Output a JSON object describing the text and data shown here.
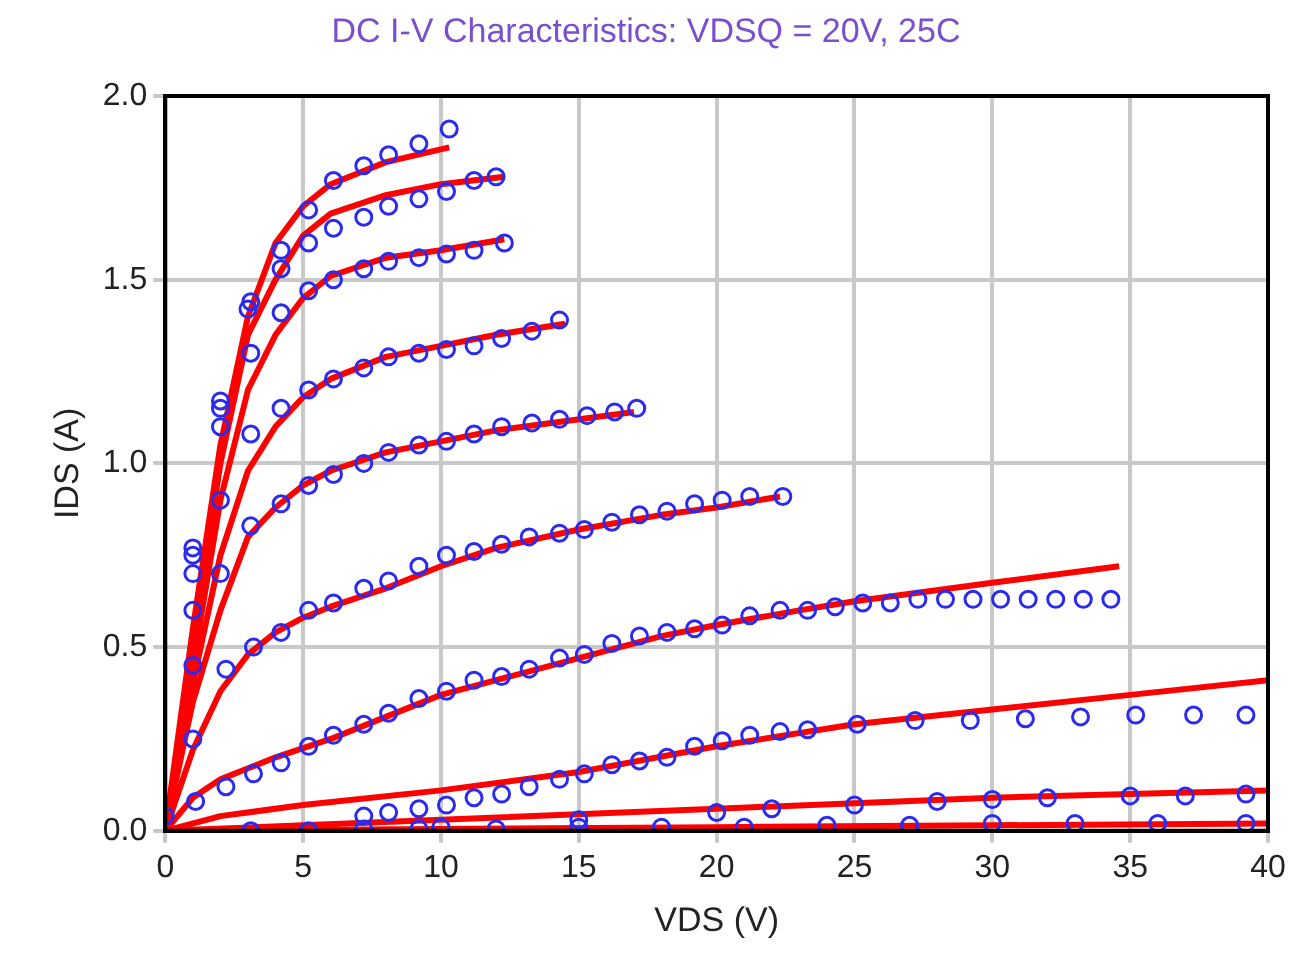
{
  "chart_data": {
    "type": "line",
    "title": "DC I-V Characteristics:  VDSQ = 20V, 25C",
    "xlabel": "VDS (V)",
    "ylabel": "IDS (A)",
    "xlim": [
      0,
      40
    ],
    "xticks": [
      0,
      5,
      10,
      15,
      20,
      25,
      30,
      35,
      40
    ],
    "ylim": [
      0,
      2
    ],
    "yticks": [
      {
        "value": 0,
        "label": "0.0"
      },
      {
        "value": 0.5,
        "label": "0.5"
      },
      {
        "value": 1,
        "label": "1.0"
      },
      {
        "value": 1.5,
        "label": "1.5"
      },
      {
        "value": 2,
        "label": "2.0"
      }
    ],
    "grid": true,
    "legend": false,
    "series": [
      {
        "color": "#ff0000",
        "x": [
          0,
          1,
          2,
          3,
          4,
          5,
          6,
          8,
          10.3
        ],
        "values": [
          0,
          0.55,
          1.05,
          1.4,
          1.6,
          1.7,
          1.76,
          1.82,
          1.86
        ]
      },
      {
        "color": "#ff0000",
        "x": [
          0,
          1,
          2,
          3,
          4,
          5,
          6,
          8,
          10,
          12.3
        ],
        "values": [
          0,
          0.5,
          1.0,
          1.35,
          1.5,
          1.62,
          1.68,
          1.73,
          1.76,
          1.78
        ]
      },
      {
        "color": "#ff0000",
        "x": [
          0,
          1,
          2,
          3,
          4,
          5,
          6,
          8,
          10,
          12.3
        ],
        "values": [
          0,
          0.45,
          0.9,
          1.2,
          1.35,
          1.45,
          1.51,
          1.56,
          1.58,
          1.61
        ]
      },
      {
        "color": "#ff0000",
        "x": [
          0,
          1,
          2,
          3,
          4,
          5,
          6,
          8,
          10,
          12,
          14.5
        ],
        "values": [
          0,
          0.4,
          0.75,
          0.98,
          1.1,
          1.18,
          1.23,
          1.29,
          1.32,
          1.35,
          1.38
        ]
      },
      {
        "color": "#ff0000",
        "x": [
          0,
          1,
          2,
          3,
          4,
          5,
          6,
          8,
          10,
          12,
          14,
          17
        ],
        "values": [
          0,
          0.35,
          0.6,
          0.8,
          0.88,
          0.94,
          0.98,
          1.03,
          1.06,
          1.09,
          1.11,
          1.14
        ]
      },
      {
        "color": "#ff0000",
        "x": [
          0,
          1,
          2,
          3,
          4,
          5,
          6,
          8,
          10,
          12,
          15,
          18,
          20,
          22.3
        ],
        "values": [
          0,
          0.22,
          0.38,
          0.48,
          0.54,
          0.58,
          0.61,
          0.66,
          0.72,
          0.77,
          0.82,
          0.86,
          0.88,
          0.91
        ]
      },
      {
        "color": "#ff0000",
        "x": [
          0,
          1,
          2,
          4,
          6,
          8,
          10,
          12,
          15,
          18,
          20,
          23,
          25,
          30,
          34.6
        ],
        "values": [
          0,
          0.09,
          0.14,
          0.2,
          0.25,
          0.31,
          0.37,
          0.41,
          0.47,
          0.53,
          0.56,
          0.6,
          0.625,
          0.675,
          0.72
        ]
      },
      {
        "color": "#ff0000",
        "x": [
          0,
          2,
          5,
          10,
          15,
          20,
          25,
          30,
          35,
          40
        ],
        "values": [
          0,
          0.04,
          0.07,
          0.11,
          0.16,
          0.23,
          0.29,
          0.33,
          0.37,
          0.41
        ]
      },
      {
        "color": "#ff0000",
        "x": [
          0,
          5,
          10,
          20,
          25,
          30,
          35,
          40
        ],
        "values": [
          0,
          0.015,
          0.03,
          0.06,
          0.075,
          0.09,
          0.1,
          0.11
        ]
      },
      {
        "color": "#ff0000",
        "x": [
          0,
          10,
          20,
          30,
          40
        ],
        "values": [
          0,
          0.005,
          0.01,
          0.015,
          0.02
        ]
      },
      {
        "type": "scatter",
        "color": "#2b2bf0",
        "x": [
          1.0,
          2.0,
          3.1,
          4.2,
          5.2,
          6.1,
          7.2,
          8.1,
          9.2,
          10.3
        ],
        "values": [
          0.77,
          1.17,
          1.44,
          1.58,
          1.69,
          1.77,
          1.81,
          1.84,
          1.87,
          1.91
        ]
      },
      {
        "type": "scatter",
        "color": "#2b2bf0",
        "x": [
          1,
          2,
          3,
          4.2,
          5.2,
          6.1,
          7.2,
          8.1,
          9.2,
          10.2,
          11.2,
          12
        ],
        "values": [
          0.75,
          1.15,
          1.42,
          1.53,
          1.6,
          1.64,
          1.67,
          1.7,
          1.72,
          1.74,
          1.77,
          1.78
        ]
      },
      {
        "type": "scatter",
        "color": "#2b2bf0",
        "x": [
          1,
          2,
          3.1,
          4.2,
          5.2,
          6.1,
          7.2,
          8.1,
          9.2,
          10.2,
          11.2,
          12.3
        ],
        "values": [
          0.7,
          1.1,
          1.3,
          1.41,
          1.47,
          1.5,
          1.53,
          1.55,
          1.56,
          1.57,
          1.58,
          1.6
        ]
      },
      {
        "type": "scatter",
        "color": "#2b2bf0",
        "x": [
          1,
          2,
          3.1,
          4.2,
          5.2,
          6.1,
          7.2,
          8.1,
          9.2,
          10.2,
          11.2,
          12.2,
          13.3,
          14.3
        ],
        "values": [
          0.6,
          0.9,
          1.08,
          1.15,
          1.2,
          1.23,
          1.26,
          1.29,
          1.3,
          1.31,
          1.32,
          1.34,
          1.36,
          1.39
        ]
      },
      {
        "type": "scatter",
        "color": "#2b2bf0",
        "x": [
          1,
          2,
          3.1,
          4.2,
          5.2,
          6.1,
          7.2,
          8.1,
          9.2,
          10.2,
          11.2,
          12.2,
          13.3,
          14.3,
          15.3,
          16.3,
          17.1
        ],
        "values": [
          0.45,
          0.7,
          0.83,
          0.89,
          0.94,
          0.97,
          1.0,
          1.03,
          1.05,
          1.06,
          1.08,
          1.1,
          1.11,
          1.12,
          1.13,
          1.14,
          1.15
        ]
      },
      {
        "type": "scatter",
        "color": "#2b2bf0",
        "x": [
          1,
          2.2,
          3.2,
          4.2,
          5.2,
          6.1,
          7.2,
          8.1,
          9.2,
          10.2,
          11.2,
          12.2,
          13.2,
          14.3,
          15.2,
          16.2,
          17.2,
          18.2,
          19.2,
          20.2,
          21.2,
          22.4
        ],
        "values": [
          0.25,
          0.44,
          0.5,
          0.54,
          0.6,
          0.62,
          0.66,
          0.68,
          0.72,
          0.75,
          0.76,
          0.78,
          0.8,
          0.81,
          0.82,
          0.84,
          0.86,
          0.87,
          0.89,
          0.9,
          0.91,
          0.91
        ]
      },
      {
        "type": "scatter",
        "color": "#2b2bf0",
        "x": [
          0,
          1.1,
          2.2,
          3.2,
          4.2,
          5.2,
          6.1,
          7.2,
          8.1,
          9.2,
          10.2,
          11.2,
          12.2,
          13.2,
          14.3,
          15.2,
          16.2,
          17.2,
          18.2,
          19.2,
          20.2,
          21.2,
          22.3,
          23.3,
          24.3,
          25.3,
          26.3,
          27.3,
          28.3,
          29.3,
          30.3,
          31.3,
          32.3,
          33.3,
          34.3
        ],
        "values": [
          0.04,
          0.08,
          0.12,
          0.155,
          0.185,
          0.23,
          0.26,
          0.29,
          0.32,
          0.36,
          0.38,
          0.41,
          0.42,
          0.44,
          0.47,
          0.48,
          0.51,
          0.53,
          0.54,
          0.55,
          0.56,
          0.585,
          0.6,
          0.6,
          0.61,
          0.62,
          0.62,
          0.63,
          0.63,
          0.63,
          0.63,
          0.63,
          0.63,
          0.63,
          0.63
        ]
      },
      {
        "type": "scatter",
        "color": "#2b2bf0",
        "x": [
          7.2,
          8.1,
          9.2,
          10.2,
          11.2,
          12.2,
          13.2,
          14.3,
          15.2,
          16.2,
          17.2,
          18.2,
          19.2,
          20.2,
          21.2,
          22.3,
          23.3,
          25.1,
          27.2,
          29.2,
          31.2,
          33.2,
          35.2,
          37.3,
          39.2
        ],
        "values": [
          0.04,
          0.05,
          0.06,
          0.07,
          0.09,
          0.1,
          0.12,
          0.14,
          0.155,
          0.18,
          0.19,
          0.2,
          0.23,
          0.245,
          0.26,
          0.27,
          0.275,
          0.29,
          0.3,
          0.3,
          0.305,
          0.31,
          0.315,
          0.315,
          0.315
        ]
      },
      {
        "type": "scatter",
        "color": "#2b2bf0",
        "x": [
          10,
          15,
          20,
          22,
          25,
          28,
          30,
          32,
          35,
          37,
          39.2
        ],
        "values": [
          0.01,
          0.03,
          0.05,
          0.06,
          0.07,
          0.08,
          0.085,
          0.09,
          0.095,
          0.095,
          0.1
        ]
      },
      {
        "type": "scatter",
        "color": "#2b2bf0",
        "x": [
          3.1,
          5.2,
          7.2,
          9.2,
          12,
          15,
          18,
          21,
          24,
          27,
          30,
          33,
          36,
          39.2
        ],
        "values": [
          0,
          0,
          0.005,
          0.005,
          0.005,
          0.01,
          0.01,
          0.01,
          0.015,
          0.015,
          0.02,
          0.02,
          0.02,
          0.02
        ]
      }
    ]
  }
}
